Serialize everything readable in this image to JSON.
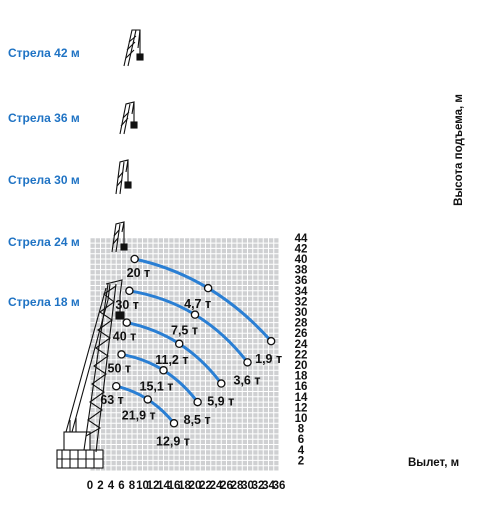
{
  "chart_data": {
    "type": "line",
    "xlabel": "Вылет, м",
    "ylabel": "Высота подъема, м",
    "xlim": [
      0,
      36
    ],
    "ylim": [
      0,
      44
    ],
    "x_ticks": [
      "0",
      "2",
      "4",
      "6",
      "8",
      "10",
      "12",
      "14",
      "16",
      "18",
      "20",
      "22",
      "24",
      "26",
      "28",
      "30",
      "32",
      "34",
      "36"
    ],
    "y_ticks": [
      "2",
      "4",
      "6",
      "8",
      "10",
      "12",
      "14",
      "16",
      "18",
      "20",
      "22",
      "24",
      "26",
      "28",
      "30",
      "32",
      "34",
      "36",
      "38",
      "40",
      "42",
      "44"
    ],
    "grid": true,
    "colors": {
      "curve": "#2a7fd4",
      "grid_bg": "#cfd0d2",
      "grid_line": "#ffffff",
      "boom_label": "#1f73c4"
    },
    "series": [
      {
        "name": "Стрела 42 м",
        "points": [
          {
            "x": 8.5,
            "y": 40.0,
            "label": "20 т"
          },
          {
            "x": 22.5,
            "y": 34.5,
            "label": "4,7 т"
          },
          {
            "x": 34.5,
            "y": 24.5,
            "label": "1,9 т"
          }
        ]
      },
      {
        "name": "Стрела 36 м",
        "points": [
          {
            "x": 7.5,
            "y": 34.0,
            "label": "30 т"
          },
          {
            "x": 20.0,
            "y": 29.5,
            "label": "7,5 т"
          },
          {
            "x": 30.0,
            "y": 20.5,
            "label": "3,6 т"
          }
        ]
      },
      {
        "name": "Стрела 30 м",
        "points": [
          {
            "x": 7.0,
            "y": 28.0,
            "label": "40 т"
          },
          {
            "x": 17.0,
            "y": 24.0,
            "label": "11,2 т"
          },
          {
            "x": 25.0,
            "y": 16.5,
            "label": "5,9 т"
          }
        ]
      },
      {
        "name": "Стрела 24 м",
        "points": [
          {
            "x": 6.0,
            "y": 22.0,
            "label": "50 т"
          },
          {
            "x": 14.0,
            "y": 19.0,
            "label": "15,1 т"
          },
          {
            "x": 20.5,
            "y": 13.0,
            "label": "8,5 т"
          }
        ]
      },
      {
        "name": "Стрела 18 м",
        "points": [
          {
            "x": 5.0,
            "y": 16.0,
            "label": "63 т"
          },
          {
            "x": 11.0,
            "y": 13.5,
            "label": "21,9 т"
          },
          {
            "x": 16.0,
            "y": 9.0,
            "label": "12,9 т"
          }
        ]
      }
    ]
  }
}
